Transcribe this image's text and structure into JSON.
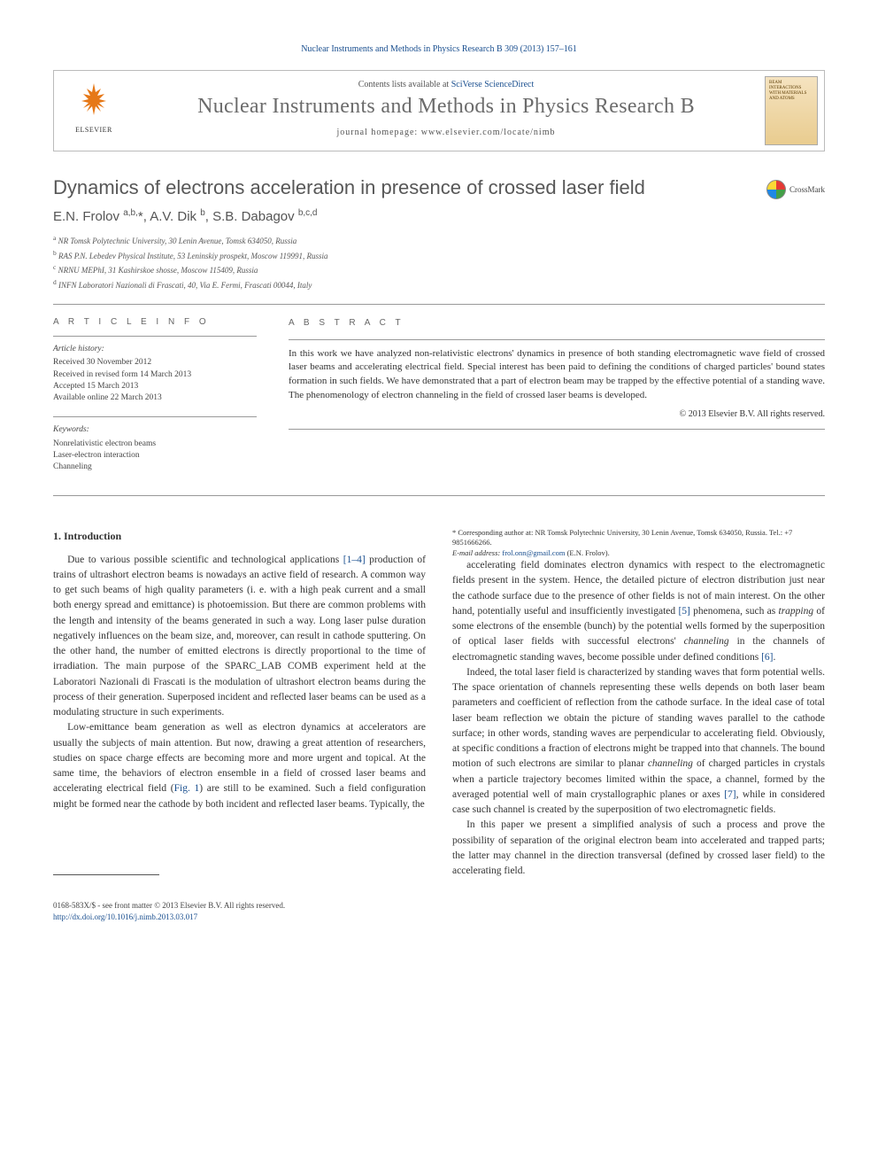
{
  "colors": {
    "link": "#1a4f8f",
    "heading_gray": "#575757",
    "journal_gray": "#6b6b6b",
    "body_text": "#333333",
    "elsevier_orange": "#e67817",
    "rule": "#999999",
    "background": "#ffffff"
  },
  "typography": {
    "body_font": "Georgia / Times",
    "heading_font": "Helvetica Neue / Arial",
    "body_size_pt": 9,
    "title_size_pt": 17,
    "journal_title_size_pt": 19
  },
  "running_head": {
    "text_prefix": "Nuclear Instruments and Methods in Physics Research B 309 (2013) 157–161"
  },
  "masthead": {
    "publisher": "ELSEVIER",
    "contents_prefix": "Contents lists available at ",
    "contents_link": "SciVerse ScienceDirect",
    "journal_title": "Nuclear Instruments and Methods in Physics Research B",
    "homepage_prefix": "journal homepage: ",
    "homepage_url": "www.elsevier.com/locate/nimb",
    "cover_text": "BEAM INTERACTIONS WITH MATERIALS AND ATOMS"
  },
  "article": {
    "title": "Dynamics of electrons acceleration in presence of crossed laser field",
    "crossmark_label": "CrossMark",
    "authors_html": "E.N. Frolov <sup>a,b,</sup>*, A.V. Dik <sup>b</sup>, S.B. Dabagov <sup>b,c,d</sup>",
    "affiliations": [
      "a NR Tomsk Polytechnic University, 30 Lenin Avenue, Tomsk 634050, Russia",
      "b RAS P.N. Lebedev Physical Institute, 53 Leninskiy prospekt, Moscow 119991, Russia",
      "c NRNU MEPhI, 31 Kashirskoe shosse, Moscow 115409, Russia",
      "d INFN Laboratori Nazionali di Frascati, 40, Via E. Fermi, Frascati 00044, Italy"
    ]
  },
  "info": {
    "heading": "A R T I C L E   I N F O",
    "history_label": "Article history:",
    "history": [
      "Received 30 November 2012",
      "Received in revised form 14 March 2013",
      "Accepted 15 March 2013",
      "Available online 22 March 2013"
    ],
    "keywords_label": "Keywords:",
    "keywords": [
      "Nonrelativistic electron beams",
      "Laser-electron interaction",
      "Channeling"
    ]
  },
  "abstract": {
    "heading": "A B S T R A C T",
    "text": "In this work we have analyzed non-relativistic electrons' dynamics in presence of both standing electromagnetic wave field of crossed laser beams and accelerating electrical field. Special interest has been paid to defining the conditions of charged particles' bound states formation in such fields. We have demonstrated that a part of electron beam may be trapped by the effective potential of a standing wave. The phenomenology of electron channeling in the field of crossed laser beams is developed.",
    "copyright": "© 2013 Elsevier B.V. All rights reserved."
  },
  "body": {
    "section1_heading": "1. Introduction",
    "p1": "Due to various possible scientific and technological applications [1–4] production of trains of ultrashort electron beams is nowadays an active field of research. A common way to get such beams of high quality parameters (i. e. with a high peak current and a small both energy spread and emittance) is photoemission. But there are common problems with the length and intensity of the beams generated in such a way. Long laser pulse duration negatively influences on the beam size, and, moreover, can result in cathode sputtering. On the other hand, the number of emitted electrons is directly proportional to the time of irradiation. The main purpose of the SPARC_LAB COMB experiment held at the Laboratori Nazionali di Frascati is the modulation of ultrashort electron beams during the process of their generation. Superposed incident and reflected laser beams can be used as a modulating structure in such experiments.",
    "p2": "Low-emittance beam generation as well as electron dynamics at accelerators are usually the subjects of main attention. But now, drawing a great attention of researchers, studies on space charge effects are becoming more and more urgent and topical. At the same time, the behaviors of electron ensemble in a field of crossed laser beams and accelerating electrical field (Fig. 1) are still to be examined. Such a field configuration might be formed near the cathode by both incident and reflected laser beams. Typically, the",
    "p3": "accelerating field dominates electron dynamics with respect to the electromagnetic fields present in the system. Hence, the detailed picture of electron distribution just near the cathode surface due to the presence of other fields is not of main interest. On the other hand, potentially useful and insufficiently investigated [5] phenomena, such as trapping of some electrons of the ensemble (bunch) by the potential wells formed by the superposition of optical laser fields with successful electrons' channeling in the channels of electromagnetic standing waves, become possible under defined conditions [6].",
    "p4": "Indeed, the total laser field is characterized by standing waves that form potential wells. The space orientation of channels representing these wells depends on both laser beam parameters and coefficient of reflection from the cathode surface. In the ideal case of total laser beam reflection we obtain the picture of standing waves parallel to the cathode surface; in other words, standing waves are perpendicular to accelerating field. Obviously, at specific conditions a fraction of electrons might be trapped into that channels. The bound motion of such electrons are similar to planar channeling of charged particles in crystals when a particle trajectory becomes limited within the space, a channel, formed by the averaged potential well of main crystallographic planes or axes [7], while in considered case such channel is created by the superposition of two electromagnetic fields.",
    "p5": "In this paper we present a simplified analysis of such a process and prove the possibility of separation of the original electron beam into accelerated and trapped parts; the latter may channel in the direction transversal (defined by crossed laser field) to the accelerating field."
  },
  "footnote": {
    "corr": "* Corresponding author at: NR Tomsk Polytechnic University, 30 Lenin Avenue, Tomsk 634050, Russia. Tel.: +7 9851666266.",
    "email_label": "E-mail address: ",
    "email": "frol.onn@gmail.com",
    "email_suffix": " (E.N. Frolov)."
  },
  "footer": {
    "line1": "0168-583X/$ - see front matter © 2013 Elsevier B.V. All rights reserved.",
    "doi": "http://dx.doi.org/10.1016/j.nimb.2013.03.017"
  }
}
